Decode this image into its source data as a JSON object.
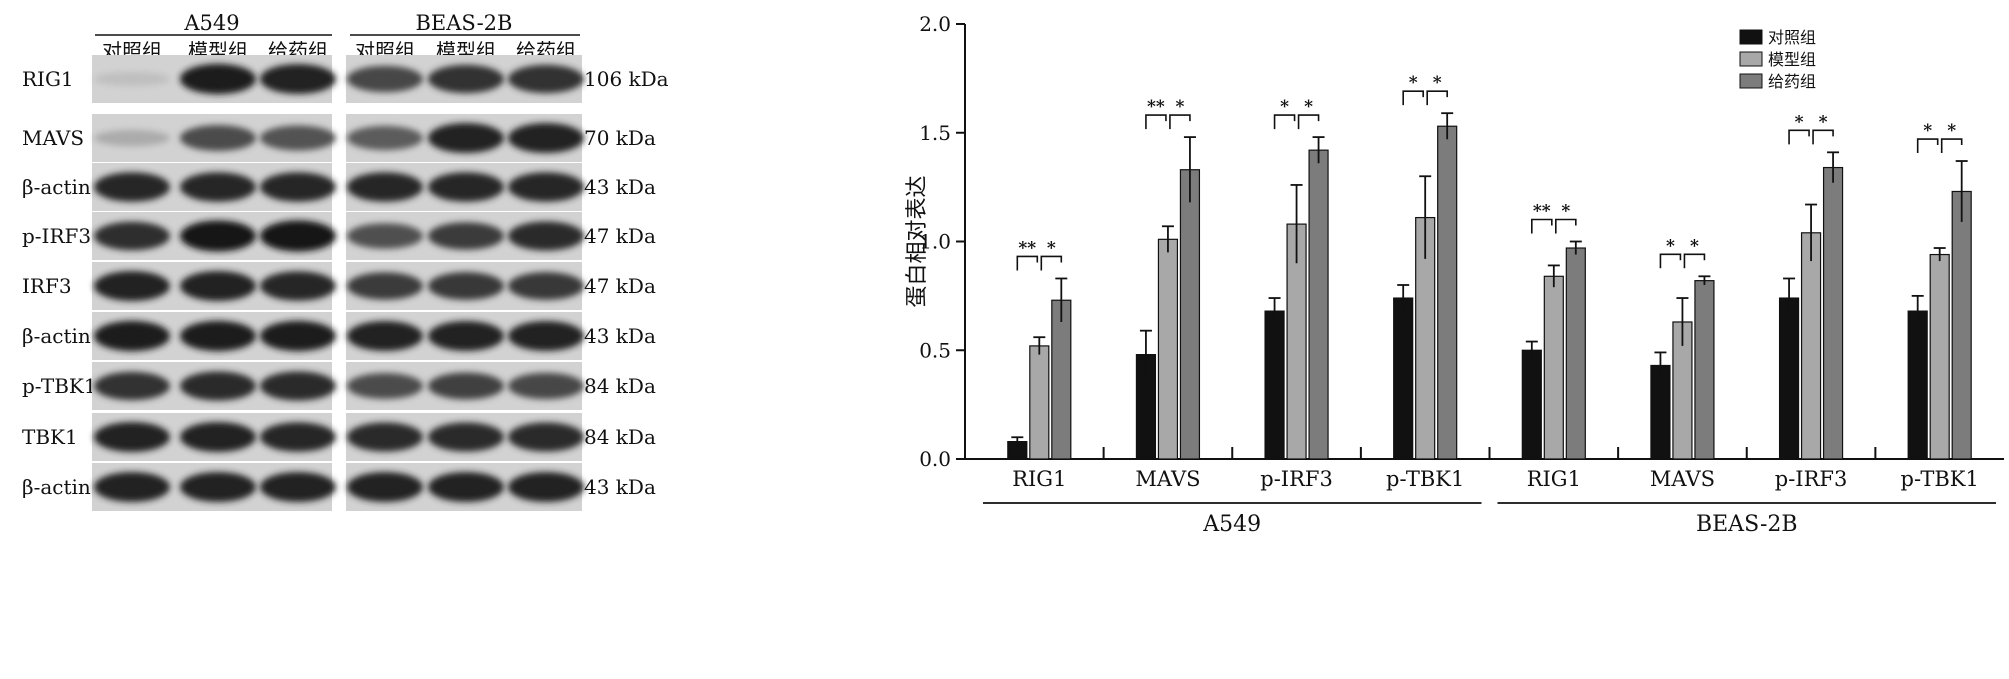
{
  "blot": {
    "cell_lines": [
      "A549",
      "BEAS-2B"
    ],
    "groups": [
      "对照组",
      "模型组",
      "给药组"
    ],
    "rows": [
      {
        "protein": "RIG1",
        "size": "106 kDa",
        "intensities": [
          0.12,
          0.92,
          0.9,
          0.72,
          0.82,
          0.82
        ]
      },
      {
        "protein": "MAVS",
        "size": "70 kDa",
        "intensities": [
          0.22,
          0.7,
          0.66,
          0.62,
          0.9,
          0.9
        ]
      },
      {
        "protein": "β-actin",
        "size": "43 kDa",
        "intensities": [
          0.88,
          0.88,
          0.88,
          0.88,
          0.88,
          0.88
        ]
      },
      {
        "protein": "p-IRF3",
        "size": "47 kDa",
        "intensities": [
          0.84,
          0.95,
          0.96,
          0.68,
          0.78,
          0.86
        ]
      },
      {
        "protein": "IRF3",
        "size": "47 kDa",
        "intensities": [
          0.9,
          0.9,
          0.88,
          0.78,
          0.8,
          0.8
        ]
      },
      {
        "protein": "β-actin",
        "size": "43 kDa",
        "intensities": [
          0.92,
          0.92,
          0.92,
          0.9,
          0.9,
          0.9
        ]
      },
      {
        "protein": "p-TBK1",
        "size": "84 kDa",
        "intensities": [
          0.82,
          0.86,
          0.86,
          0.7,
          0.75,
          0.72
        ]
      },
      {
        "protein": "TBK1",
        "size": "84 kDa",
        "intensities": [
          0.9,
          0.9,
          0.88,
          0.86,
          0.86,
          0.86
        ]
      },
      {
        "protein": "β-actin",
        "size": "43 kDa",
        "intensities": [
          0.9,
          0.9,
          0.9,
          0.9,
          0.9,
          0.9
        ]
      }
    ]
  },
  "chart_data": {
    "type": "bar",
    "ylabel": "蛋白相对表达",
    "ylim": [
      0,
      2.0
    ],
    "yticks": [
      "0.0",
      "0.5",
      "1.0",
      "1.5",
      "2.0"
    ],
    "groups": [
      {
        "name": "A549",
        "categories": [
          "RIG1",
          "MAVS",
          "p-IRF3",
          "p-TBK1"
        ]
      },
      {
        "name": "BEAS-2B",
        "categories": [
          "RIG1",
          "MAVS",
          "p-IRF3",
          "p-TBK1"
        ]
      }
    ],
    "series": [
      {
        "name": "对照组",
        "color": "#111111",
        "values": [
          0.08,
          0.48,
          0.68,
          0.74,
          0.5,
          0.43,
          0.74,
          0.68
        ],
        "errors": [
          0.02,
          0.11,
          0.06,
          0.06,
          0.04,
          0.06,
          0.09,
          0.07
        ]
      },
      {
        "name": "模型组",
        "color": "#a8a8a8",
        "values": [
          0.52,
          1.01,
          1.08,
          1.11,
          0.84,
          0.63,
          1.04,
          0.94
        ],
        "errors": [
          0.04,
          0.06,
          0.18,
          0.19,
          0.05,
          0.11,
          0.13,
          0.03
        ]
      },
      {
        "name": "给药组",
        "color": "#7c7c7c",
        "values": [
          0.73,
          1.33,
          1.42,
          1.53,
          0.97,
          0.82,
          1.34,
          1.23
        ],
        "errors": [
          0.1,
          0.15,
          0.06,
          0.06,
          0.03,
          0.02,
          0.07,
          0.14
        ]
      }
    ],
    "significance": [
      [
        "**",
        "*"
      ],
      [
        "**",
        "*"
      ],
      [
        "*",
        "*"
      ],
      [
        "*",
        "*"
      ],
      [
        "**",
        "*"
      ],
      [
        "*",
        "*"
      ],
      [
        "*",
        "*"
      ],
      [
        "*",
        "*"
      ]
    ],
    "legend_position": "top-right"
  }
}
